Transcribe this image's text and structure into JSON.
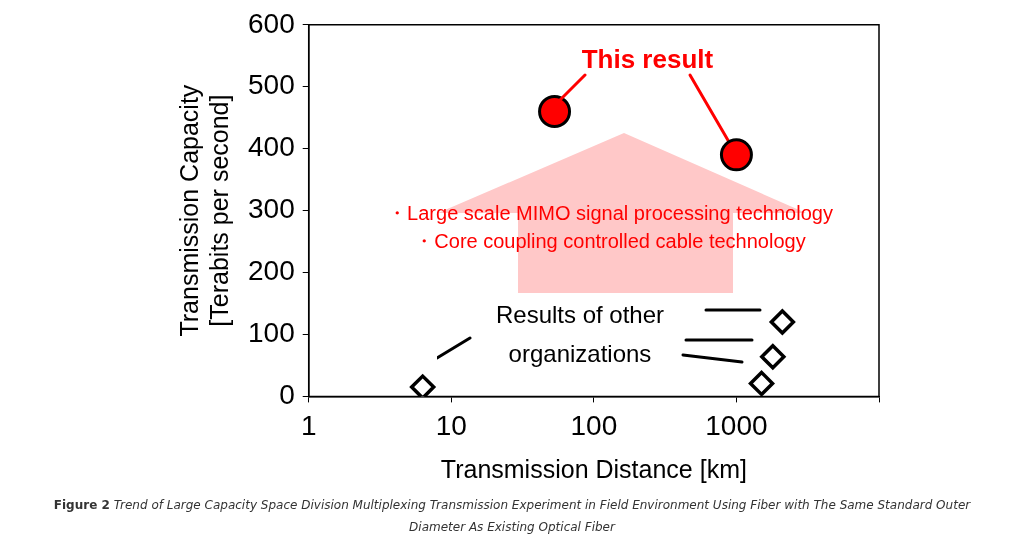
{
  "chart_data": {
    "type": "scatter",
    "xlabel": "Transmission Distance [km]",
    "ylabel": "Transmission Capacity\n[Terabits per second]",
    "log": "x",
    "xlim": [
      1,
      10000
    ],
    "xticks": [
      1,
      10,
      100,
      1000,
      {
        "value": 10000,
        "label": null
      }
    ],
    "ylim": [
      0,
      600
    ],
    "yticks": [
      0,
      100,
      200,
      300,
      400,
      500,
      600
    ],
    "grid": false,
    "legend": false,
    "series": [
      {
        "color": "#ff0000",
        "marker": "circle",
        "x": [
          53,
          1000
        ],
        "values": [
          460,
          390
        ]
      },
      {
        "color": "#000000",
        "marker": "diamond",
        "x": [
          6.3,
          2100,
          1800,
          1500
        ],
        "values": [
          15,
          120,
          64,
          21
        ]
      }
    ],
    "annotations": [
      {
        "text": "This result",
        "x": 1000,
        "y": 390
      },
      "・Large scale MIMO signal processing technology",
      "・Core coupling controlled cable technology",
      "Results of other organizations",
      "Figure 2 Trend of Large Capacity Space Division Multiplexing Transmission Experiment in Field Environment Using Fiber with The Same Standard Outer Diameter As Existing Optical Fiber"
    ]
  }
}
